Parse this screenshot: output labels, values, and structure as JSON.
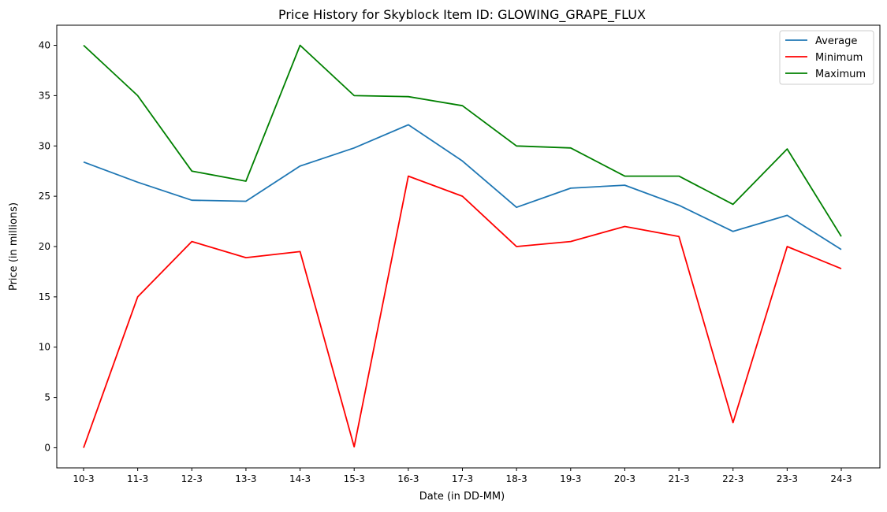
{
  "chart_data": {
    "type": "line",
    "title": "Price History for Skyblock Item ID: GLOWING_GRAPE_FLUX",
    "xlabel": "Date (in DD-MM)",
    "ylabel": "Price (in millions)",
    "categories": [
      "10-3",
      "11-3",
      "12-3",
      "13-3",
      "14-3",
      "15-3",
      "16-3",
      "17-3",
      "18-3",
      "19-3",
      "20-3",
      "21-3",
      "22-3",
      "23-3",
      "24-3"
    ],
    "yticks": [
      0,
      5,
      10,
      15,
      20,
      25,
      30,
      35,
      40
    ],
    "ylim": [
      -2.0,
      42.0
    ],
    "grid": false,
    "legend_position": "top-right",
    "series": [
      {
        "name": "Average",
        "color": "#1f77b4",
        "values": [
          28.4,
          26.4,
          24.6,
          24.5,
          28.0,
          29.8,
          32.1,
          28.5,
          23.9,
          25.8,
          26.1,
          24.1,
          21.5,
          23.1,
          19.7
        ]
      },
      {
        "name": "Minimum",
        "color": "#ff0000",
        "values": [
          0.0,
          15.0,
          20.5,
          18.9,
          19.5,
          0.1,
          27.0,
          25.0,
          20.0,
          20.5,
          22.0,
          21.0,
          2.5,
          20.0,
          17.8
        ]
      },
      {
        "name": "Maximum",
        "color": "#008000",
        "values": [
          40.0,
          35.0,
          27.5,
          26.5,
          40.0,
          35.0,
          34.9,
          34.0,
          30.0,
          29.8,
          27.0,
          27.0,
          24.2,
          29.7,
          21.0
        ]
      }
    ]
  }
}
